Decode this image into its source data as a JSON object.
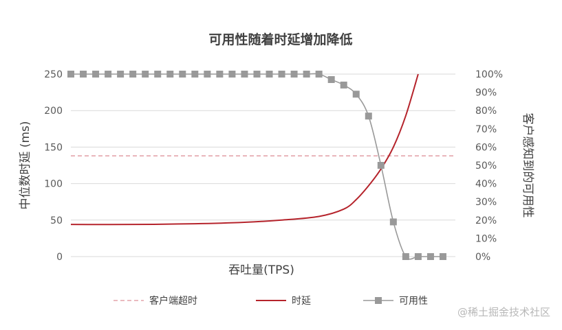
{
  "chart_data": {
    "type": "line",
    "title": "可用性随着时延增加降低",
    "xlabel": "吞吐量(TPS)",
    "ylabel": "中位数时延 (ms)",
    "y2label": "客户感知到的可用性",
    "ylim": [
      0,
      250
    ],
    "yticks": [
      "250",
      "200",
      "150",
      "100",
      "50",
      "0"
    ],
    "y2lim": [
      0,
      100
    ],
    "y2ticks": [
      "100%",
      "90%",
      "80%",
      "70%",
      "60%",
      "50%",
      "40%",
      "30%",
      "20%",
      "10%",
      "0%"
    ],
    "xlim": [
      0,
      31
    ],
    "grid": true,
    "legend_position": "bottom",
    "series": [
      {
        "name": "客户端超时",
        "axis": "left",
        "style": "dashed",
        "color": "#e3a3aa",
        "x": [
          0,
          31
        ],
        "y": [
          138,
          138
        ]
      },
      {
        "name": "时延",
        "axis": "left",
        "style": "smooth",
        "color": "#b5232b",
        "x": [
          0,
          5,
          10,
          14,
          17,
          20,
          22,
          23,
          24,
          25,
          26,
          27,
          28
        ],
        "y": [
          44,
          44,
          45,
          47,
          50,
          55,
          65,
          78,
          97,
          120,
          150,
          193,
          250
        ]
      },
      {
        "name": "可用性",
        "axis": "right",
        "style": "marker",
        "color": "#999999",
        "x": [
          0,
          1,
          2,
          3,
          4,
          5,
          6,
          7,
          8,
          9,
          10,
          11,
          12,
          13,
          14,
          15,
          16,
          17,
          18,
          19,
          20,
          21,
          22,
          23,
          24,
          25,
          26,
          27,
          28,
          29,
          30
        ],
        "y": [
          100,
          100,
          100,
          100,
          100,
          100,
          100,
          100,
          100,
          100,
          100,
          100,
          100,
          100,
          100,
          100,
          100,
          100,
          100,
          100,
          100,
          97,
          94,
          89,
          77,
          50,
          19,
          0,
          0,
          0,
          0
        ]
      }
    ]
  },
  "watermark": "@稀土掘金技术社区"
}
